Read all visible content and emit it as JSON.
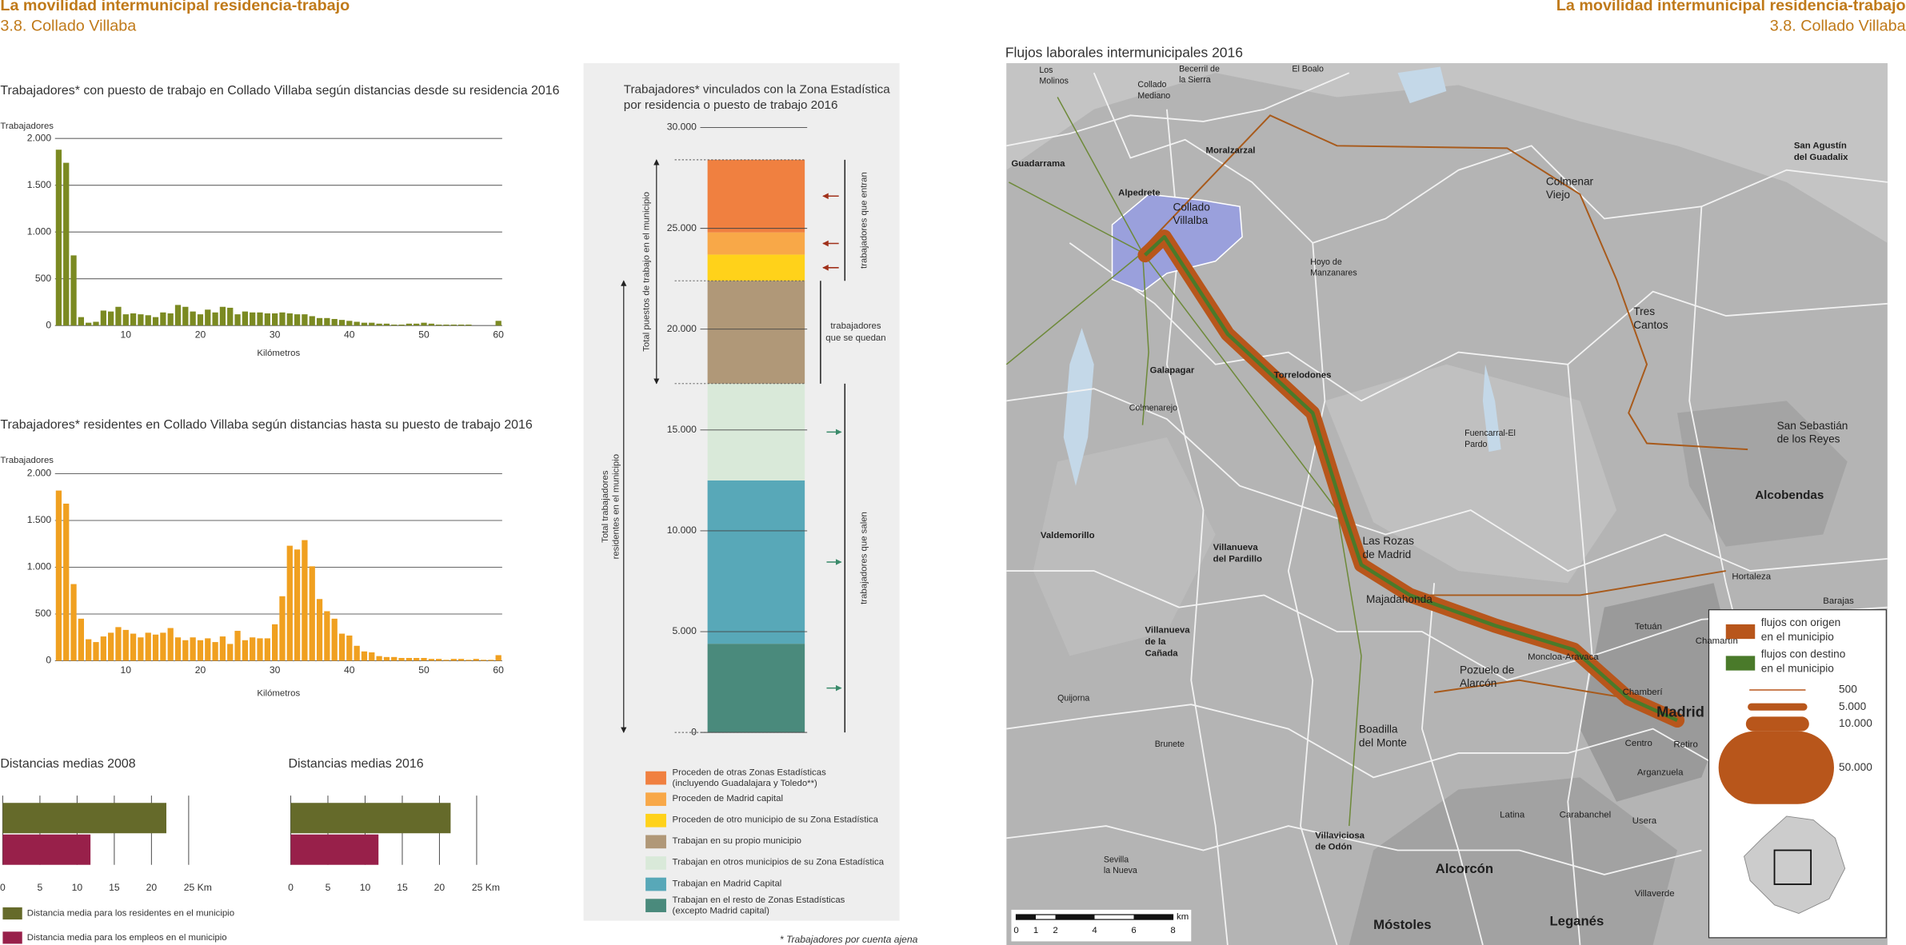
{
  "header": {
    "title": "La movilidad intermunicipal residencia-trabajo",
    "subtitle": "3.8. Collado Villaba"
  },
  "header_right": {
    "title": "La movilidad intermunicipal residencia-trabajo",
    "subtitle": "3.8. Collado Villaba"
  },
  "chart_data": [
    {
      "type": "bar",
      "title": "Trabajadores* con puesto de trabajo en Collado Villaba según distancias  desde su residencia 2016",
      "y_label": "Trabajadores",
      "x_label": "Kilómetros",
      "color": "#7b8a22",
      "x": [
        1,
        2,
        3,
        4,
        5,
        6,
        7,
        8,
        9,
        10,
        11,
        12,
        13,
        14,
        15,
        16,
        17,
        18,
        19,
        20,
        21,
        22,
        23,
        24,
        25,
        26,
        27,
        28,
        29,
        30,
        31,
        32,
        33,
        34,
        35,
        36,
        37,
        38,
        39,
        40,
        41,
        42,
        43,
        44,
        45,
        46,
        47,
        48,
        49,
        50,
        51,
        52,
        53,
        54,
        55,
        56,
        57,
        58,
        59,
        60
      ],
      "values": [
        1880,
        1740,
        750,
        90,
        30,
        40,
        160,
        150,
        200,
        120,
        130,
        120,
        110,
        90,
        140,
        130,
        220,
        200,
        150,
        120,
        170,
        140,
        200,
        190,
        120,
        150,
        140,
        140,
        130,
        130,
        140,
        130,
        120,
        120,
        100,
        80,
        80,
        70,
        60,
        50,
        40,
        30,
        30,
        20,
        20,
        10,
        10,
        20,
        20,
        30,
        20,
        10,
        10,
        10,
        10,
        10,
        0,
        0,
        0,
        50
      ],
      "xlim": [
        0.5,
        60.5
      ],
      "xticks": [
        10,
        20,
        30,
        40,
        50,
        60
      ],
      "ylim": [
        0,
        2000
      ],
      "yticks": [
        0,
        500,
        {
          "value": 1000,
          "label": "1.000"
        },
        {
          "value": 1500,
          "label": "1.500"
        },
        {
          "value": 2000,
          "label": "2.000"
        }
      ],
      "grid": true
    },
    {
      "type": "bar",
      "title": "Trabajadores* residentes en Collado Villaba según distancias  hasta su puesto de trabajo 2016",
      "y_label": "Trabajadores",
      "x_label": "Kilómetros",
      "color": "#f0a020",
      "x": [
        1,
        2,
        3,
        4,
        5,
        6,
        7,
        8,
        9,
        10,
        11,
        12,
        13,
        14,
        15,
        16,
        17,
        18,
        19,
        20,
        21,
        22,
        23,
        24,
        25,
        26,
        27,
        28,
        29,
        30,
        31,
        32,
        33,
        34,
        35,
        36,
        37,
        38,
        39,
        40,
        41,
        42,
        43,
        44,
        45,
        46,
        47,
        48,
        49,
        50,
        51,
        52,
        53,
        54,
        55,
        56,
        57,
        58,
        59,
        60
      ],
      "values": [
        1820,
        1680,
        820,
        450,
        230,
        200,
        260,
        300,
        360,
        330,
        290,
        250,
        300,
        280,
        300,
        350,
        250,
        220,
        250,
        220,
        240,
        200,
        260,
        180,
        320,
        220,
        250,
        240,
        240,
        390,
        690,
        1230,
        1190,
        1290,
        1010,
        660,
        530,
        450,
        290,
        270,
        160,
        100,
        90,
        50,
        40,
        40,
        30,
        30,
        30,
        30,
        20,
        20,
        10,
        20,
        20,
        10,
        20,
        10,
        10,
        60
      ],
      "xlim": [
        0.5,
        60.5
      ],
      "xticks": [
        10,
        20,
        30,
        40,
        50,
        60
      ],
      "ylim": [
        0,
        2000
      ],
      "yticks": [
        0,
        500,
        {
          "value": 1000,
          "label": "1.000"
        },
        {
          "value": 1500,
          "label": "1.500"
        },
        {
          "value": 2000,
          "label": "2.000"
        }
      ],
      "grid": true
    },
    {
      "type": "stacked_bar",
      "title": "Trabajadores* vinculados con la Zona Estadística",
      "subtitle": "por residencia o puesto de trabajo 2016",
      "ylim": [
        0,
        30000
      ],
      "yticks": [
        0,
        {
          "value": 5000,
          "label": "5.000"
        },
        {
          "value": 10000,
          "label": "10.000"
        },
        {
          "value": 15000,
          "label": "15.000"
        },
        {
          "value": 20000,
          "label": "20.000"
        },
        {
          "value": 25000,
          "label": "25.000"
        },
        {
          "value": 30000,
          "label": "30.000"
        }
      ],
      "series": [
        {
          "name": "Proceden de otras Zonas Estadísticas",
          "note": "(incluyendo Guadalajara y Toledo**)",
          "color": "#f08040",
          "value": 3600
        },
        {
          "name": "Proceden de Madrid capital",
          "color": "#f8a848",
          "value": 1100
        },
        {
          "name": "Proceden de otro municipio de su Zona Estadística",
          "color": "#ffd21a",
          "value": 1300
        },
        {
          "name": "Trabajan en su propio municipio",
          "color": "#b09878",
          "value": 5100
        },
        {
          "name": "Trabajan en otros municipios de su Zona Estadística",
          "color": "#d9e9d9",
          "value": 4800
        },
        {
          "name": "Trabajan en Madrid Capital",
          "color": "#58a8b8",
          "value": 8100
        },
        {
          "name": "Trabajan en el resto de Zonas Estadísticas",
          "note": "(excepto Madrid capital)",
          "color": "#4a8a7c",
          "value": 4400
        }
      ],
      "annotations": {
        "total_jobs": "Total puestos de trabajo en el municipio",
        "total_residents": [
          "Total trabajadores",
          "residentes en el municipio"
        ],
        "in": "trabajadores que entran",
        "stay": [
          "trabajadores",
          "que se quedan"
        ],
        "out": "trabajadores que salen"
      }
    },
    {
      "type": "hbar",
      "title": "Distancias medias 2008",
      "values": [
        22,
        11.8
      ],
      "colors": [
        "#656a2a",
        "#98204a"
      ],
      "xlim": [
        0,
        25
      ],
      "xticks": [
        0,
        5,
        10,
        15,
        20,
        {
          "value": 25,
          "label": "25 Km"
        }
      ]
    },
    {
      "type": "hbar",
      "title": "Distancias medias 2016",
      "values": [
        21.5,
        11.8
      ],
      "colors": [
        "#656a2a",
        "#98204a"
      ],
      "xlim": [
        0,
        25
      ],
      "xticks": [
        0,
        5,
        10,
        15,
        20,
        {
          "value": 25,
          "label": "25 Km"
        }
      ]
    }
  ],
  "distance_legend": [
    {
      "name": "Distancia media para los residentes en el municipio",
      "color": "#656a2a"
    },
    {
      "name": "Distancia media para los empleos en el municipio",
      "color": "#98204a"
    }
  ],
  "footnote": "* Trabajadores por cuenta ajena",
  "map": {
    "title": "Flujos laborales intermunicipales 2016",
    "labels": [
      [
        "Los",
        "Molinos"
      ],
      [
        "Collado",
        "Mediano"
      ],
      [
        "Becerril de",
        "la Sierra"
      ],
      "El Boalo",
      "Guadarrama",
      "Moralzarzal",
      "Alpedrete",
      [
        "Collado",
        "Villalba"
      ],
      [
        "Colmenar",
        "Viejo"
      ],
      [
        "San Agustín",
        "del Guadalix"
      ],
      [
        "Hoyo de",
        "Manzanares"
      ],
      [
        "Tres",
        "Cantos"
      ],
      "Galapagar",
      "Torrelodones",
      "Colmenarejo",
      [
        "Fuencarral-El",
        "Pardo"
      ],
      [
        "San Sebastián",
        "de los Reyes"
      ],
      "Alcobendas",
      "Valdemorillo",
      [
        "Villanueva",
        "del Pardillo"
      ],
      [
        "Las Rozas",
        "de Madrid"
      ],
      "Hortaleza",
      "Barajas",
      "Majadahonda",
      [
        "Villanueva",
        "de la",
        "Cañada"
      ],
      "Tetuán",
      "Chamartín",
      "Moncloa-Aravaca",
      [
        "Pozuelo de",
        "Alarcón"
      ],
      "Chamberí",
      "Madrid",
      "Quijorna",
      [
        "Boadilla",
        "del Monte"
      ],
      "Centro",
      "Retiro",
      "Brunete",
      "Arganzuela",
      "Latina",
      "Carabanchel",
      "Usera",
      [
        "Villaviciosa",
        "de Odón"
      ],
      [
        "Sevilla",
        "la Nueva"
      ],
      "Alcorcón",
      "Villaverde",
      "Móstoles",
      "Leganés"
    ],
    "legend": {
      "items": [
        {
          "lines": [
            "flujos con origen",
            "en el municipio"
          ],
          "color": "#b8561b"
        },
        {
          "lines": [
            "flujos con destino",
            "en el municipio"
          ],
          "color": "#4a7a2a"
        }
      ],
      "sizes": [
        500,
        {
          "value": 5000,
          "label": "5.000"
        },
        {
          "value": 10000,
          "label": "10.000"
        },
        {
          "value": 50000,
          "label": "50.000"
        }
      ]
    },
    "scale_bar": {
      "xlim": [
        0,
        8
      ],
      "ticks": [
        0,
        1,
        2,
        4,
        6,
        8
      ],
      "unit": "km"
    }
  }
}
